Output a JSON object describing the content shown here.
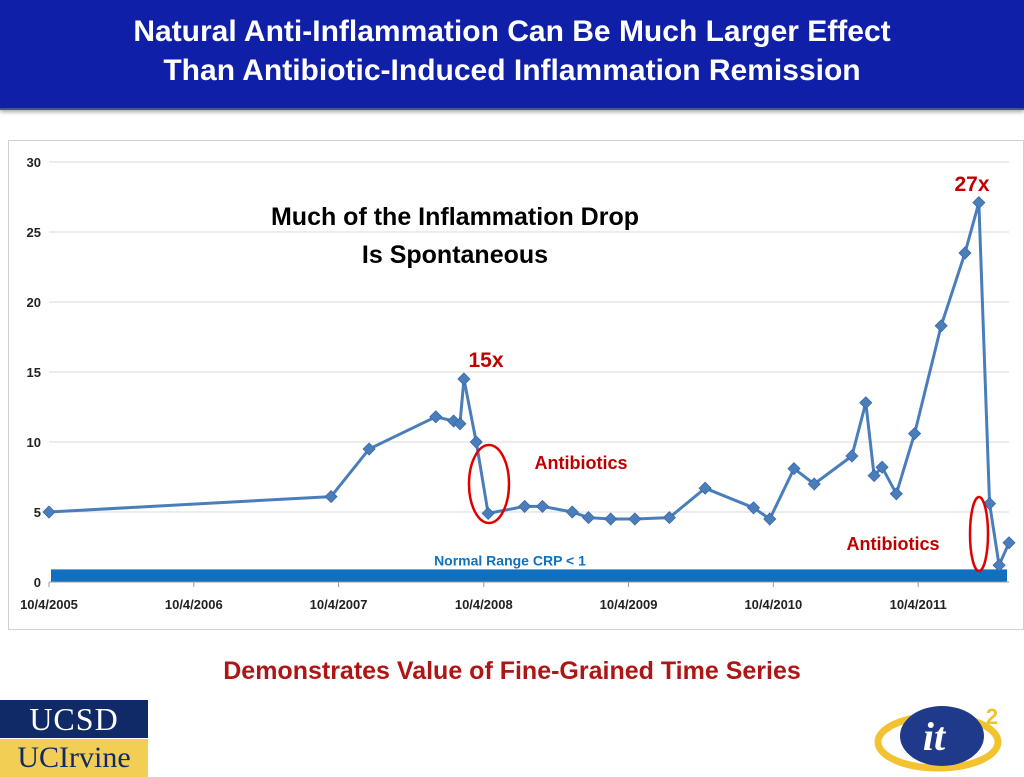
{
  "title": {
    "line1": "Natural Anti-Inflammation Can Be Much Larger Effect",
    "line2": "Than Antibiotic-Induced Inflammation Remission"
  },
  "footer": {
    "caption": "Demonstrates Value of Fine-Grained Time Series"
  },
  "logos": {
    "ucsd": "UCSD",
    "uci": "UCIrvine",
    "it2_main": "it",
    "it2_sup": "2"
  },
  "colors": {
    "title_bg": "#0f1fa8",
    "series": "#4a7ebb",
    "normal_range": "#1070c0",
    "annotation_red": "#c00000",
    "normal_range_text": "#1070c0"
  },
  "chart_data": {
    "type": "line",
    "x_axis": {
      "type": "date",
      "range": [
        "2005-10-04",
        "2012-05-20"
      ],
      "tick_labels": [
        "10/4/2005",
        "10/4/2006",
        "10/4/2007",
        "10/4/2008",
        "10/4/2009",
        "10/4/2010",
        "10/4/2011"
      ],
      "tick_dates": [
        "2005-10-04",
        "2006-10-04",
        "2007-10-04",
        "2008-10-04",
        "2009-10-04",
        "2010-10-04",
        "2011-10-04"
      ]
    },
    "y_axis": {
      "range": [
        0,
        30
      ],
      "ticks": [
        0,
        5,
        10,
        15,
        20,
        25,
        30
      ]
    },
    "grid": "horizontal",
    "series": [
      {
        "points": [
          {
            "x": "2005-10-04",
            "y": 5.0
          },
          {
            "x": "2007-09-15",
            "y": 6.1
          },
          {
            "x": "2007-12-20",
            "y": 9.5
          },
          {
            "x": "2008-06-05",
            "y": 11.8
          },
          {
            "x": "2008-07-20",
            "y": 11.5
          },
          {
            "x": "2008-08-05",
            "y": 11.3
          },
          {
            "x": "2008-08-15",
            "y": 14.5
          },
          {
            "x": "2008-09-15",
            "y": 10.0
          },
          {
            "x": "2008-10-15",
            "y": 4.9
          },
          {
            "x": "2009-01-15",
            "y": 5.4
          },
          {
            "x": "2009-03-01",
            "y": 5.4
          },
          {
            "x": "2009-05-15",
            "y": 5.0
          },
          {
            "x": "2009-06-25",
            "y": 4.6
          },
          {
            "x": "2009-08-20",
            "y": 4.5
          },
          {
            "x": "2009-10-20",
            "y": 4.5
          },
          {
            "x": "2010-01-15",
            "y": 4.6
          },
          {
            "x": "2010-04-15",
            "y": 6.7
          },
          {
            "x": "2010-08-15",
            "y": 5.3
          },
          {
            "x": "2010-09-25",
            "y": 4.5
          },
          {
            "x": "2010-11-25",
            "y": 8.1
          },
          {
            "x": "2011-01-15",
            "y": 7.0
          },
          {
            "x": "2011-04-20",
            "y": 9.0
          },
          {
            "x": "2011-05-25",
            "y": 12.8
          },
          {
            "x": "2011-06-15",
            "y": 7.6
          },
          {
            "x": "2011-07-05",
            "y": 8.2
          },
          {
            "x": "2011-08-10",
            "y": 6.3
          },
          {
            "x": "2011-09-25",
            "y": 10.6
          },
          {
            "x": "2011-12-01",
            "y": 18.3
          },
          {
            "x": "2012-01-30",
            "y": 23.5
          },
          {
            "x": "2012-03-05",
            "y": 27.1
          },
          {
            "x": "2012-04-01",
            "y": 5.6
          },
          {
            "x": "2012-04-25",
            "y": 1.2
          },
          {
            "x": "2012-05-20",
            "y": 2.8
          }
        ]
      }
    ],
    "normal_range": {
      "label": "Normal Range CRP < 1",
      "y_from": 0,
      "y_to": 0.9
    },
    "annotations": {
      "headline_line1": "Much of the Inflammation Drop",
      "headline_line2": "Is Spontaneous",
      "peak1_label": "15x",
      "peak2_label": "27x",
      "antibiotics1_label": "Antibiotics",
      "antibiotics2_label": "Antibiotics"
    }
  }
}
